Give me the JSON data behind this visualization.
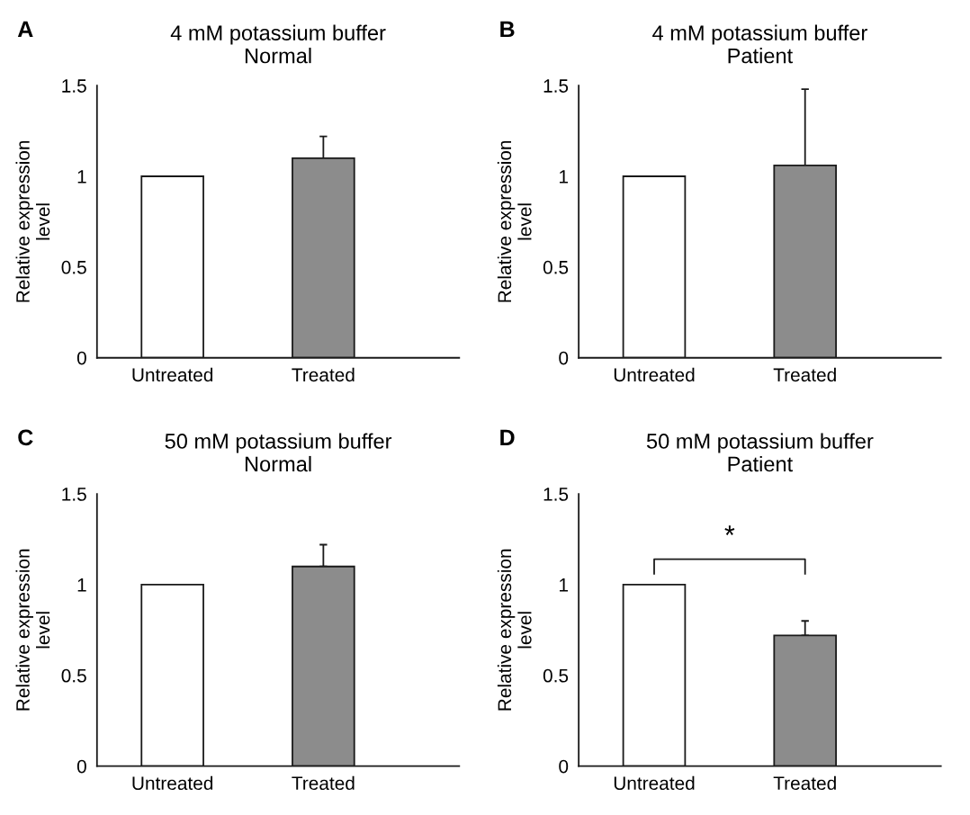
{
  "chart_data": [
    {
      "type": "bar",
      "title": "4 mM potassium buffer",
      "subtitle": "Normal",
      "ylabel": "Relative expression level",
      "categories": [
        "Untreated",
        "Treated"
      ],
      "values": [
        1.0,
        1.1
      ],
      "errors": [
        null,
        0.12
      ],
      "colors": [
        "#ffffff",
        "#8c8c8c"
      ],
      "ylim": [
        0,
        1.5
      ],
      "yticks": [
        0,
        0.5,
        1,
        1.5
      ],
      "annotations": [
        "A"
      ],
      "grid": false,
      "legend": false
    },
    {
      "type": "bar",
      "title": "4 mM potassium buffer",
      "subtitle": "Patient",
      "ylabel": "Relative expression level",
      "categories": [
        "Untreated",
        "Treated"
      ],
      "values": [
        1.0,
        1.06
      ],
      "errors": [
        null,
        0.42
      ],
      "colors": [
        "#ffffff",
        "#8c8c8c"
      ],
      "ylim": [
        0,
        1.5
      ],
      "yticks": [
        0,
        0.5,
        1,
        1.5
      ],
      "annotations": [
        "B"
      ],
      "grid": false,
      "legend": false
    },
    {
      "type": "bar",
      "title": "50 mM potassium buffer",
      "subtitle": "Normal",
      "ylabel": "Relative expression level",
      "categories": [
        "Untreated",
        "Treated"
      ],
      "values": [
        1.0,
        1.1
      ],
      "errors": [
        null,
        0.12
      ],
      "colors": [
        "#ffffff",
        "#8c8c8c"
      ],
      "ylim": [
        0,
        1.5
      ],
      "yticks": [
        0,
        0.5,
        1,
        1.5
      ],
      "annotations": [
        "C"
      ],
      "grid": false,
      "legend": false
    },
    {
      "type": "bar",
      "title": "50 mM potassium buffer",
      "subtitle": "Patient",
      "ylabel": "Relative expression level",
      "categories": [
        "Untreated",
        "Treated"
      ],
      "values": [
        1.0,
        0.72
      ],
      "errors": [
        null,
        0.08
      ],
      "colors": [
        "#ffffff",
        "#8c8c8c"
      ],
      "ylim": [
        0,
        1.5
      ],
      "yticks": [
        0,
        0.5,
        1,
        1.5
      ],
      "annotations": [
        "D",
        "*"
      ],
      "grid": false,
      "legend": false
    }
  ]
}
